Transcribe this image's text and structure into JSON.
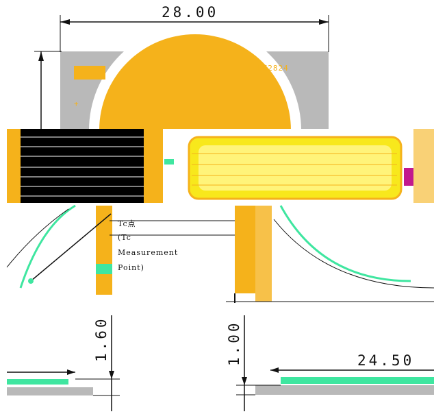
{
  "drawing": {
    "colors": {
      "package_gray": "#b9b9b9",
      "led_orange": "#f5b21b",
      "dark": "#000000",
      "line": "#111111",
      "green": "#3fe6a0",
      "magenta": "#c2188f",
      "yellow": "#f8e81c"
    },
    "dimensions": {
      "width": "28.00",
      "pad_height_left": "1.60",
      "pad_height_right": "1.00",
      "right_width": "24.50"
    },
    "labels": {
      "part_mark": "LE2824",
      "tc_line1": "Tc点",
      "tc_line2": "(Tc",
      "tc_line3": "Measurement",
      "tc_line4": "Point)",
      "corner_mark": "+"
    }
  }
}
